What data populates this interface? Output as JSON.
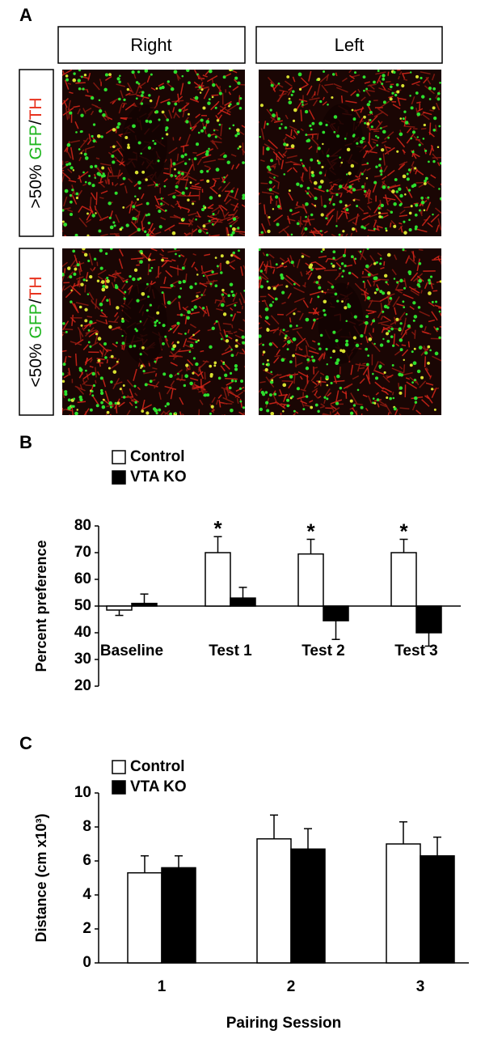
{
  "panel_a": {
    "label": "A",
    "columns": [
      "Right",
      "Left"
    ],
    "rows": [
      [
        {
          "text": ">50% ",
          "color": "#000000"
        },
        {
          "text": "GFP",
          "color": "#1db51d"
        },
        {
          "text": "/",
          "color": "#000000"
        },
        {
          "text": "TH",
          "color": "#e8321e"
        }
      ],
      [
        {
          "text": "<50% ",
          "color": "#000000"
        },
        {
          "text": "GFP",
          "color": "#1db51d"
        },
        {
          "text": "/",
          "color": "#000000"
        },
        {
          "text": "TH",
          "color": "#e8321e"
        }
      ]
    ]
  },
  "chart_data": [
    {
      "type": "bar",
      "panel": "B",
      "ylabel": "Percent preference",
      "bar_base": 50,
      "categories": [
        "Baseline",
        "Test 1",
        "Test 2",
        "Test 3"
      ],
      "series": [
        {
          "name": "Control",
          "color": "#ffffff",
          "values": [
            48.5,
            70,
            69.5,
            70
          ],
          "errors": [
            2,
            6,
            5.5,
            5
          ]
        },
        {
          "name": "VTA KO",
          "color": "#000000",
          "values": [
            51,
            53,
            44.5,
            40
          ],
          "errors": [
            3.5,
            4,
            7,
            5
          ]
        }
      ],
      "annotations": [
        {
          "text": "*",
          "x": "Test 1"
        },
        {
          "text": "*",
          "x": "Test 2"
        },
        {
          "text": "*",
          "x": "Test 3"
        }
      ],
      "ylim": [
        20,
        80
      ],
      "yticks": [
        20,
        30,
        40,
        50,
        60,
        70,
        80
      ]
    },
    {
      "type": "bar",
      "panel": "C",
      "ylabel": "Distance (cm x10³)",
      "xlabel": "Pairing Session",
      "categories": [
        "1",
        "2",
        "3"
      ],
      "series": [
        {
          "name": "Control",
          "color": "#ffffff",
          "values": [
            5.3,
            7.3,
            7.0
          ],
          "errors": [
            1.0,
            1.4,
            1.3
          ]
        },
        {
          "name": "VTA KO",
          "color": "#000000",
          "values": [
            5.6,
            6.7,
            6.3
          ],
          "errors": [
            0.7,
            1.2,
            1.1
          ]
        }
      ],
      "ylim": [
        0,
        10
      ],
      "yticks": [
        0,
        2,
        4,
        6,
        8,
        10
      ]
    }
  ]
}
